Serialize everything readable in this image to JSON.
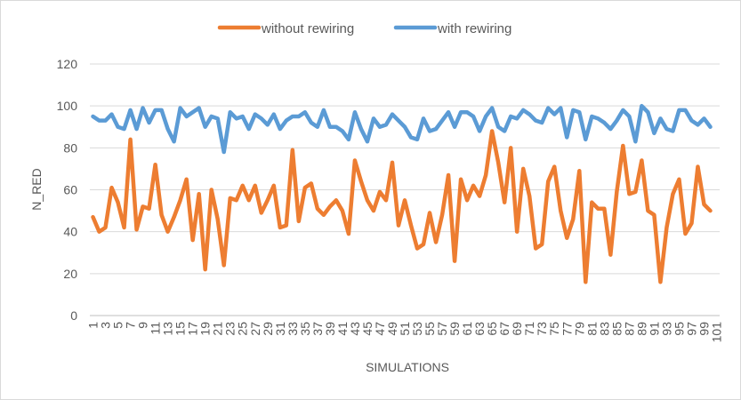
{
  "chart_data": {
    "type": "line",
    "title": "",
    "xlabel": "SIMULATIONS",
    "ylabel": "N_RED",
    "ylim": [
      0,
      120
    ],
    "yticks": [
      0,
      20,
      40,
      60,
      80,
      100,
      120
    ],
    "xlim": [
      1,
      101
    ],
    "xtick_labels": [
      "1",
      "3",
      "5",
      "7",
      "9",
      "11",
      "13",
      "15",
      "17",
      "19",
      "21",
      "23",
      "25",
      "27",
      "29",
      "31",
      "33",
      "35",
      "37",
      "39",
      "41",
      "43",
      "45",
      "47",
      "49",
      "51",
      "53",
      "55",
      "57",
      "59",
      "61",
      "63",
      "65",
      "67",
      "69",
      "71",
      "73",
      "75",
      "77",
      "79",
      "81",
      "83",
      "85",
      "87",
      "89",
      "91",
      "93",
      "95",
      "97",
      "99",
      "101"
    ],
    "grid": "horizontal",
    "legend_position": "top",
    "series": [
      {
        "name": "without rewiring",
        "color": "#ED7D31",
        "values": [
          47,
          40,
          42,
          61,
          54,
          42,
          84,
          41,
          52,
          51,
          72,
          48,
          40,
          47,
          55,
          65,
          36,
          58,
          22,
          60,
          46,
          24,
          56,
          55,
          62,
          55,
          62,
          49,
          55,
          62,
          42,
          43,
          79,
          45,
          61,
          63,
          51,
          48,
          52,
          55,
          50,
          39,
          74,
          64,
          55,
          50,
          59,
          55,
          73,
          43,
          55,
          43,
          32,
          34,
          49,
          35,
          48,
          67,
          26,
          65,
          55,
          62,
          57,
          67,
          88,
          73,
          54,
          80,
          40,
          70,
          57,
          32,
          34,
          64,
          71,
          50,
          37,
          46,
          69,
          16,
          54,
          51,
          51,
          29,
          59,
          81,
          58,
          59,
          74,
          50,
          48,
          16,
          42,
          58,
          65,
          39,
          44,
          71,
          53,
          50
        ]
      },
      {
        "name": "with rewiring",
        "color": "#5B9BD5",
        "values": [
          95,
          93,
          93,
          96,
          90,
          89,
          98,
          89,
          99,
          92,
          98,
          98,
          89,
          83,
          99,
          95,
          97,
          99,
          90,
          95,
          94,
          78,
          97,
          94,
          95,
          89,
          96,
          94,
          91,
          96,
          89,
          93,
          95,
          95,
          97,
          92,
          90,
          98,
          90,
          90,
          88,
          84,
          97,
          89,
          83,
          94,
          90,
          91,
          96,
          93,
          90,
          85,
          84,
          94,
          88,
          89,
          93,
          97,
          90,
          97,
          97,
          95,
          88,
          95,
          99,
          90,
          88,
          95,
          94,
          98,
          96,
          93,
          92,
          99,
          96,
          99,
          85,
          98,
          97,
          84,
          95,
          94,
          92,
          89,
          93,
          98,
          95,
          83,
          100,
          97,
          87,
          94,
          89,
          88,
          98,
          98,
          93,
          91,
          94,
          90
        ]
      }
    ]
  }
}
